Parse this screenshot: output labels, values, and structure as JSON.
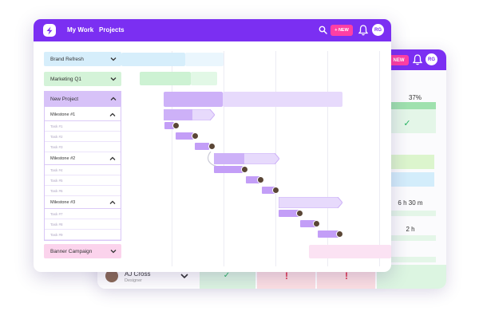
{
  "header": {
    "nav_my_work": "My Work",
    "nav_projects": "Projects",
    "new_button": "+ NEW",
    "avatar_initials": "RG"
  },
  "back_window": {
    "new_button": "NEW",
    "avatar_initials": "RG",
    "percent": "37%",
    "hours_1": "6 h 30 m",
    "hours_2": "2 h",
    "person_name": "AJ Cross",
    "person_role": "Designer",
    "check_mark": "✓",
    "alert_mark": "!"
  },
  "sidebar": {
    "groups": [
      {
        "label": "Brand Refresh",
        "color": "#d6eefb"
      },
      {
        "label": "Marketing Q1",
        "color": "#d4f3d8"
      },
      {
        "label": "New Project",
        "color": "#d7c2f8"
      },
      {
        "label": "Banner Campaign",
        "color": "#fbd3ec"
      }
    ],
    "milestones": [
      {
        "label": "Milestone #1",
        "tasks": [
          "Task #1",
          "Task #2",
          "Task #3"
        ]
      },
      {
        "label": "Milestone #2",
        "tasks": [
          "Task #4",
          "Task #5",
          "Task #6"
        ]
      },
      {
        "label": "Milestone #3",
        "tasks": [
          "Task #7",
          "Task #8",
          "Task #9"
        ]
      }
    ]
  },
  "colors": {
    "brand": "#7b2ff2",
    "new_button": "#ff3fa4",
    "bar_light": "#e7dafc",
    "bar_dark": "#cdb1f8",
    "bar_task": "#c39ef7"
  },
  "icons": [
    "logo-icon",
    "search-icon",
    "bell-icon",
    "chevron-down-icon",
    "chevron-up-icon"
  ]
}
